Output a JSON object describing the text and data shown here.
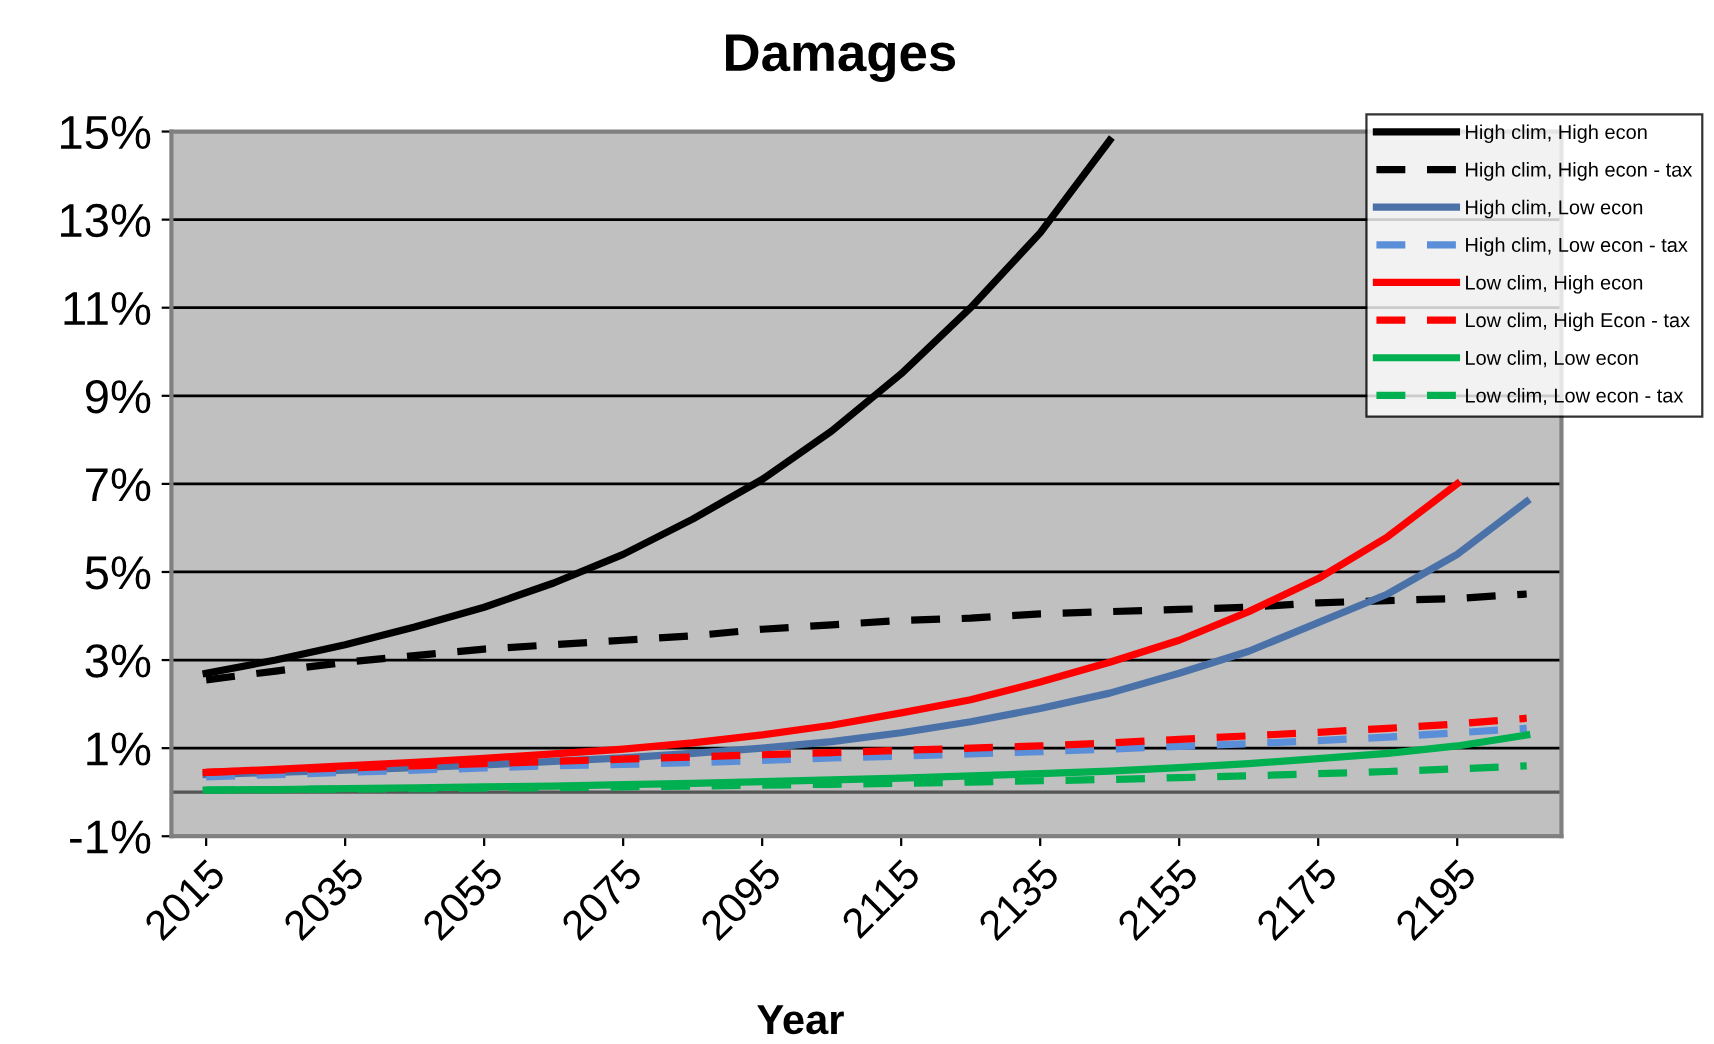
{
  "chart_data": {
    "type": "line",
    "title": "Damages",
    "xlabel": "Year",
    "x": [
      2015,
      2025,
      2035,
      2045,
      2055,
      2065,
      2075,
      2085,
      2095,
      2105,
      2115,
      2125,
      2135,
      2145,
      2155,
      2165,
      2175,
      2185,
      2195,
      2205
    ],
    "xlim": [
      2010,
      2210
    ],
    "xticks": [
      2015,
      2035,
      2055,
      2075,
      2095,
      2115,
      2135,
      2155,
      2175,
      2195
    ],
    "ylim": [
      -1,
      15
    ],
    "yticks": [
      {
        "value": -1,
        "label": "-1%"
      },
      {
        "value": 1,
        "label": "1%"
      },
      {
        "value": 3,
        "label": "3%"
      },
      {
        "value": 5,
        "label": "5%"
      },
      {
        "value": 7,
        "label": "7%"
      },
      {
        "value": 9,
        "label": "9%"
      },
      {
        "value": 11,
        "label": "11%"
      },
      {
        "value": 13,
        "label": "13%"
      },
      {
        "value": 15,
        "label": "15%"
      }
    ],
    "grid": "y",
    "legend": "top right",
    "marker": "none",
    "series": [
      {
        "name": "High clim, High econ",
        "color": "#000000",
        "line_style": "solid",
        "values": [
          2.7,
          3.0,
          3.35,
          3.75,
          4.2,
          4.75,
          5.4,
          6.2,
          7.1,
          8.2,
          9.5,
          11.0,
          12.7,
          14.8,
          null,
          null,
          null,
          null,
          null,
          null
        ]
      },
      {
        "name": "High clim, High econ - tax",
        "color": "#000000",
        "line_style": "dashed",
        "values": [
          2.55,
          2.75,
          2.95,
          3.1,
          3.25,
          3.35,
          3.45,
          3.55,
          3.7,
          3.8,
          3.9,
          3.95,
          4.05,
          4.1,
          4.15,
          4.2,
          4.3,
          4.35,
          4.4,
          4.5
        ]
      },
      {
        "name": "High clim, Low econ",
        "color": "#4a72a8",
        "line_style": "solid",
        "values": [
          0.4,
          0.45,
          0.5,
          0.56,
          0.62,
          0.7,
          0.78,
          0.88,
          1.0,
          1.15,
          1.35,
          1.6,
          1.9,
          2.25,
          2.7,
          3.2,
          3.85,
          4.5,
          5.4,
          6.6
        ]
      },
      {
        "name": "High clim, Low econ - tax",
        "color": "#5b8ed8",
        "line_style": "dashed",
        "values": [
          0.35,
          0.4,
          0.45,
          0.5,
          0.55,
          0.6,
          0.63,
          0.67,
          0.72,
          0.78,
          0.82,
          0.87,
          0.92,
          0.98,
          1.04,
          1.1,
          1.17,
          1.25,
          1.35,
          1.45
        ]
      },
      {
        "name": "Low clim, High econ",
        "color": "#ff0000",
        "line_style": "solid",
        "values": [
          0.45,
          0.52,
          0.6,
          0.68,
          0.77,
          0.87,
          0.98,
          1.12,
          1.3,
          1.52,
          1.8,
          2.1,
          2.5,
          2.95,
          3.45,
          4.1,
          4.85,
          5.8,
          7.0,
          null
        ]
      },
      {
        "name": "Low clim, High Econ - tax",
        "color": "#ff0000",
        "line_style": "dashed",
        "values": [
          0.45,
          0.5,
          0.55,
          0.6,
          0.65,
          0.7,
          0.75,
          0.8,
          0.85,
          0.9,
          0.95,
          1.0,
          1.05,
          1.12,
          1.2,
          1.28,
          1.36,
          1.45,
          1.55,
          1.68
        ]
      },
      {
        "name": "Low clim, Low econ",
        "color": "#00b050",
        "line_style": "solid",
        "values": [
          0.05,
          0.06,
          0.08,
          0.1,
          0.12,
          0.14,
          0.17,
          0.2,
          0.24,
          0.28,
          0.32,
          0.37,
          0.42,
          0.48,
          0.56,
          0.65,
          0.76,
          0.88,
          1.05,
          1.3
        ]
      },
      {
        "name": "Low clim, Low econ - tax",
        "color": "#00b050",
        "line_style": "dashed",
        "values": [
          0.05,
          0.06,
          0.07,
          0.08,
          0.09,
          0.1,
          0.12,
          0.14,
          0.16,
          0.18,
          0.2,
          0.23,
          0.26,
          0.29,
          0.33,
          0.37,
          0.42,
          0.47,
          0.53,
          0.6
        ]
      }
    ]
  }
}
